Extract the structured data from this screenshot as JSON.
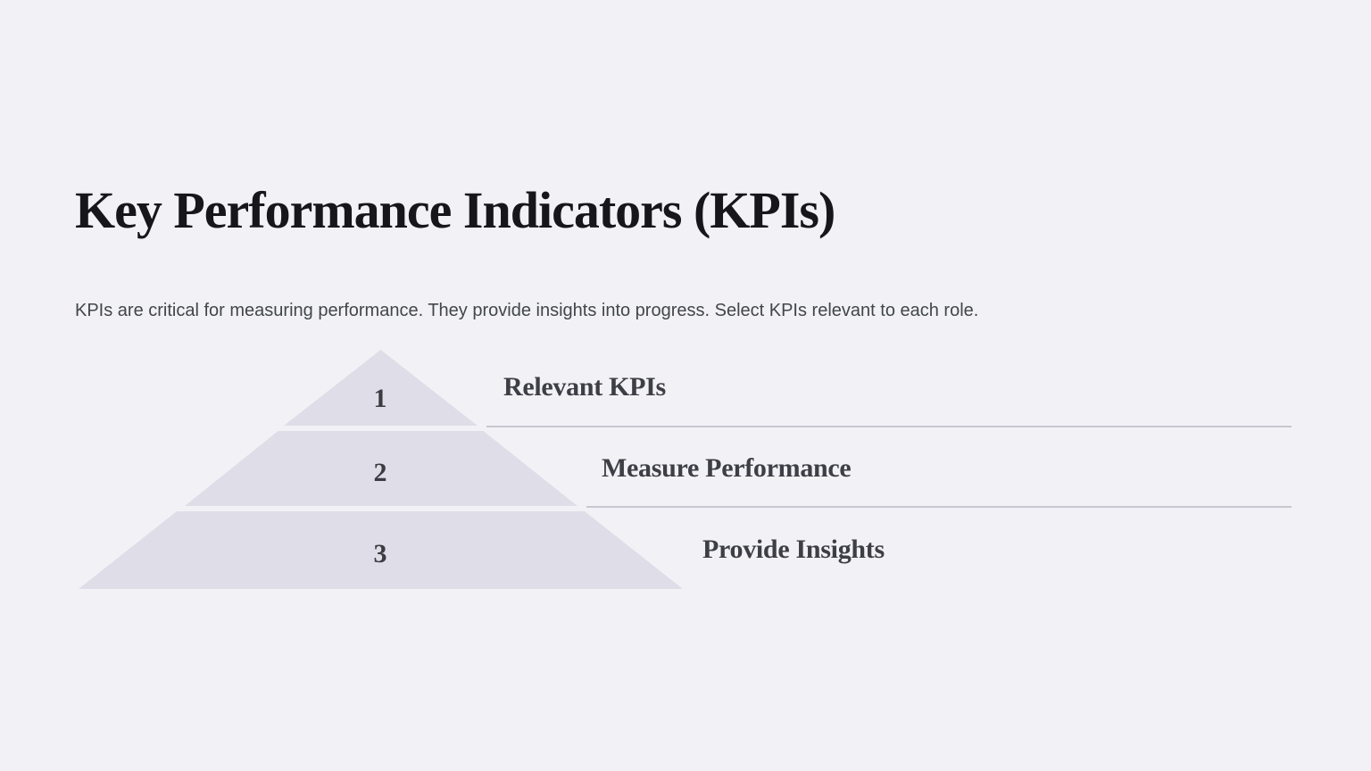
{
  "slide": {
    "title": "Key Performance Indicators (KPIs)",
    "subtitle": "KPIs are critical for measuring performance. They provide insights into progress. Select KPIs relevant to each role."
  },
  "pyramid": {
    "type": "pyramid-diagram",
    "levels": [
      {
        "number": "1",
        "label": "Relevant KPIs"
      },
      {
        "number": "2",
        "label": "Measure Performance"
      },
      {
        "number": "3",
        "label": "Provide Insights"
      }
    ]
  },
  "colors": {
    "background": "#f2f2f6",
    "pyramid_fill": "#dedde8",
    "divider_line": "#c7c7d1",
    "title_text": "#17171b",
    "subtitle_text": "#42454c",
    "label_text": "#3e3e46"
  }
}
